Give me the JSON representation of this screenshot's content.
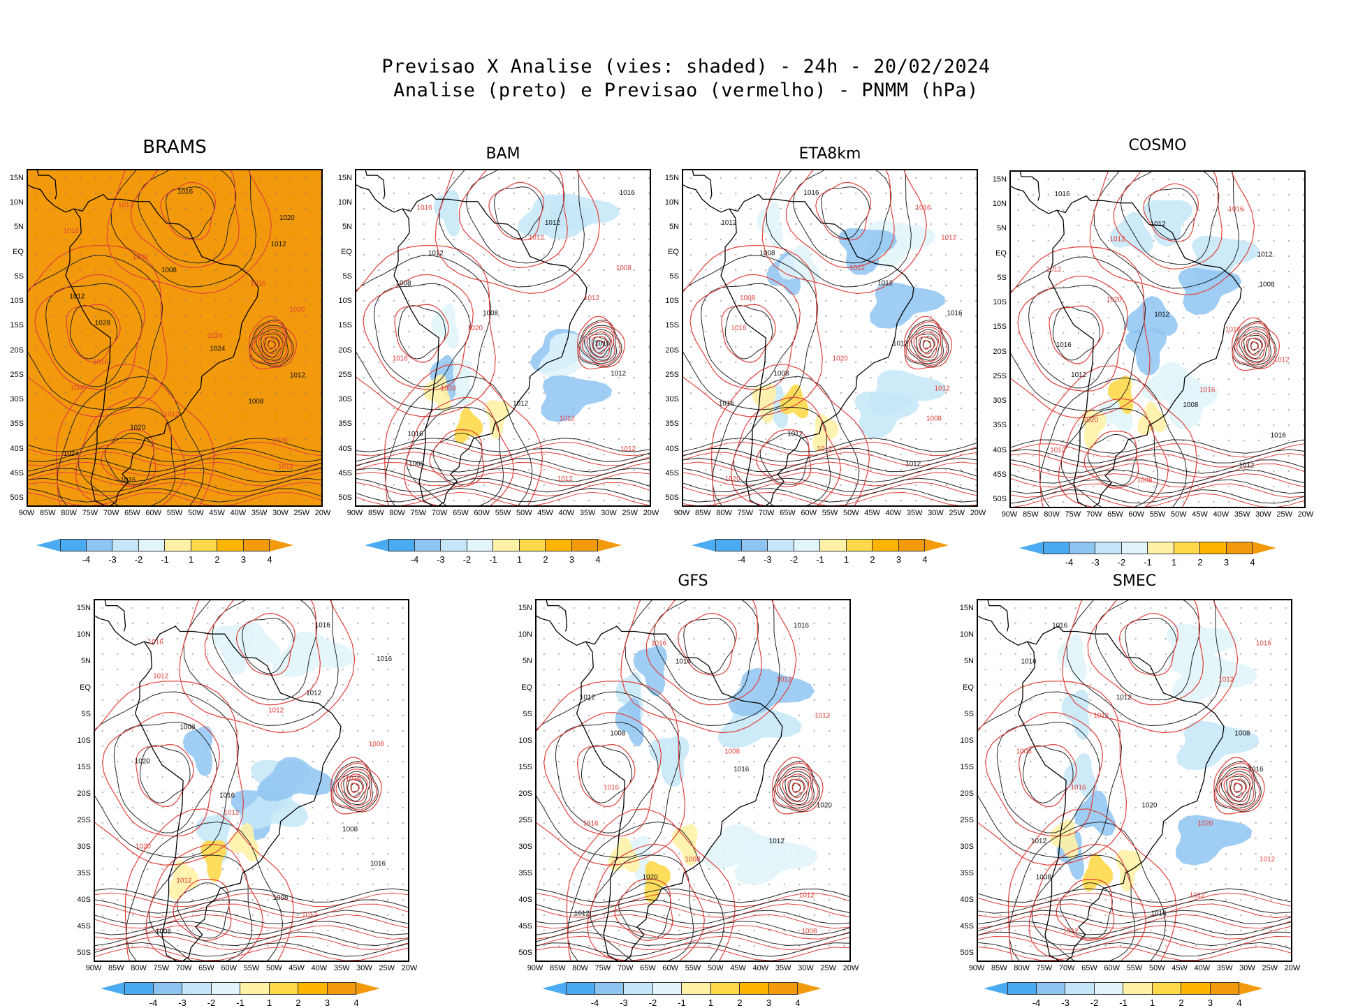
{
  "header": {
    "line1": "Previsao X Analise (vies: shaded) - 24h - 20/02/2024",
    "line2": "Analise (preto) e Previsao (vermelho) - PNMM (hPa)"
  },
  "lat_labels": [
    "15N",
    "10N",
    "5N",
    "EQ",
    "5S",
    "10S",
    "15S",
    "20S",
    "25S",
    "30S",
    "35S",
    "40S",
    "45S",
    "50S"
  ],
  "lon_labels": [
    "90W",
    "85W",
    "80W",
    "75W",
    "70W",
    "65W",
    "60W",
    "55W",
    "50W",
    "45W",
    "40W",
    "35W",
    "30W",
    "25W",
    "20W"
  ],
  "colorbar": {
    "ticks": [
      "-4",
      "-3",
      "-2",
      "-1",
      "1",
      "2",
      "3",
      "4"
    ],
    "colors": [
      "#4aaaf2",
      "#8ec4f2",
      "#c4e6f8",
      "#e0f4fa",
      "#ffffff",
      "#fff2a6",
      "#ffd94a",
      "#ffb400",
      "#f29a0c"
    ]
  },
  "panels": [
    {
      "id": "brams",
      "title": "BRAMS",
      "isobars": [
        "1016",
        "1012",
        "1020",
        "1016",
        "1012",
        "1008",
        "1008",
        "1016",
        "1012",
        "1020",
        "1028",
        "1024",
        "1024",
        "1016",
        "1012",
        "1008",
        "1008",
        "1012",
        "1020",
        "1028",
        "1024",
        "1012",
        "1016"
      ]
    },
    {
      "id": "bam",
      "title": "BAM",
      "isobars": [
        "1016",
        "1016",
        "1012",
        "1012",
        "1012",
        "1008",
        "1008",
        "1012",
        "1008",
        "1020",
        "1016",
        "1016",
        "1012",
        "1008",
        "1012",
        "1012",
        "1016",
        "1012",
        "1008",
        "1012"
      ]
    },
    {
      "id": "eta",
      "title": "ETA8km",
      "isobars": [
        "1016",
        "1016",
        "1012",
        "1012",
        "1008",
        "1012",
        "1012",
        "1008",
        "1016",
        "1016",
        "1012",
        "1020",
        "1008",
        "1012",
        "1016",
        "1008",
        "1012",
        "1012",
        "1012",
        "1020"
      ]
    },
    {
      "id": "cosmo",
      "title": "COSMO",
      "isobars": [
        "1016",
        "1016",
        "1012",
        "1012",
        "1012",
        "1012",
        "1008",
        "1020",
        "1012",
        "1016",
        "1016",
        "1012",
        "1012",
        "1016",
        "1008",
        "1020",
        "1016",
        "1012",
        "1012",
        "1008"
      ]
    },
    {
      "id": "p5",
      "title": "",
      "isobars": [
        "1016",
        "1016",
        "1016",
        "1012",
        "1012",
        "1012",
        "1008",
        "1008",
        "1020",
        "1016",
        "1016",
        "1012",
        "1008",
        "1020",
        "1016",
        "1012",
        "1008",
        "1012",
        "1008"
      ]
    },
    {
      "id": "gfs",
      "title": "GFS",
      "isobars": [
        "1016",
        "1016",
        "1016",
        "1012",
        "1012",
        "1012",
        "1008",
        "1008",
        "1016",
        "1016",
        "1020",
        "1016",
        "1012",
        "1008",
        "1020",
        "1012",
        "1012",
        "1008"
      ]
    },
    {
      "id": "smec",
      "title": "SMEC",
      "isobars": [
        "1016",
        "1016",
        "1016",
        "1012",
        "1012",
        "1012",
        "1008",
        "1008",
        "1016",
        "1016",
        "1020",
        "1020",
        "1012",
        "1012",
        "1008",
        "1012",
        "1016",
        "1012"
      ]
    }
  ]
}
